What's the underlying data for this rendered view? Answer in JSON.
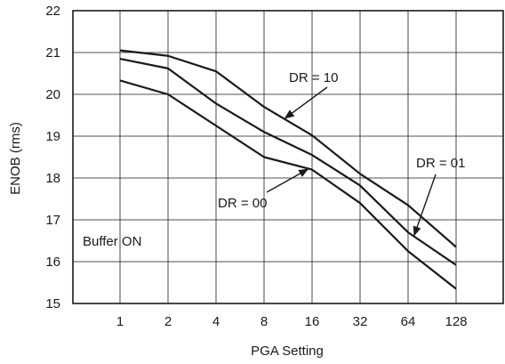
{
  "chart_data": {
    "type": "line",
    "xlabel": "PGA Setting",
    "ylabel": "ENOB (rms)",
    "categories": [
      "1",
      "2",
      "4",
      "8",
      "16",
      "32",
      "64",
      "128"
    ],
    "ylim": [
      15,
      22
    ],
    "yticks": [
      "15",
      "16",
      "17",
      "18",
      "19",
      "20",
      "21",
      "22"
    ],
    "grid": true,
    "series": [
      {
        "label": "DR = 10",
        "values": [
          21.05,
          20.92,
          20.55,
          19.7,
          19.02,
          18.1,
          17.35,
          16.35
        ]
      },
      {
        "label": "DR = 01",
        "values": [
          20.85,
          20.62,
          19.78,
          19.1,
          18.55,
          17.82,
          16.7,
          15.92
        ]
      },
      {
        "label": "DR = 00",
        "values": [
          20.33,
          20.0,
          19.25,
          18.5,
          18.2,
          17.4,
          16.25,
          15.35
        ]
      }
    ],
    "annotations": [
      {
        "id": "dr10",
        "text": "DR = 10"
      },
      {
        "id": "dr01",
        "text": "DR = 01"
      },
      {
        "id": "dr00",
        "text": "DR = 00"
      },
      {
        "id": "buffer",
        "text": "Buffer ON"
      }
    ]
  }
}
